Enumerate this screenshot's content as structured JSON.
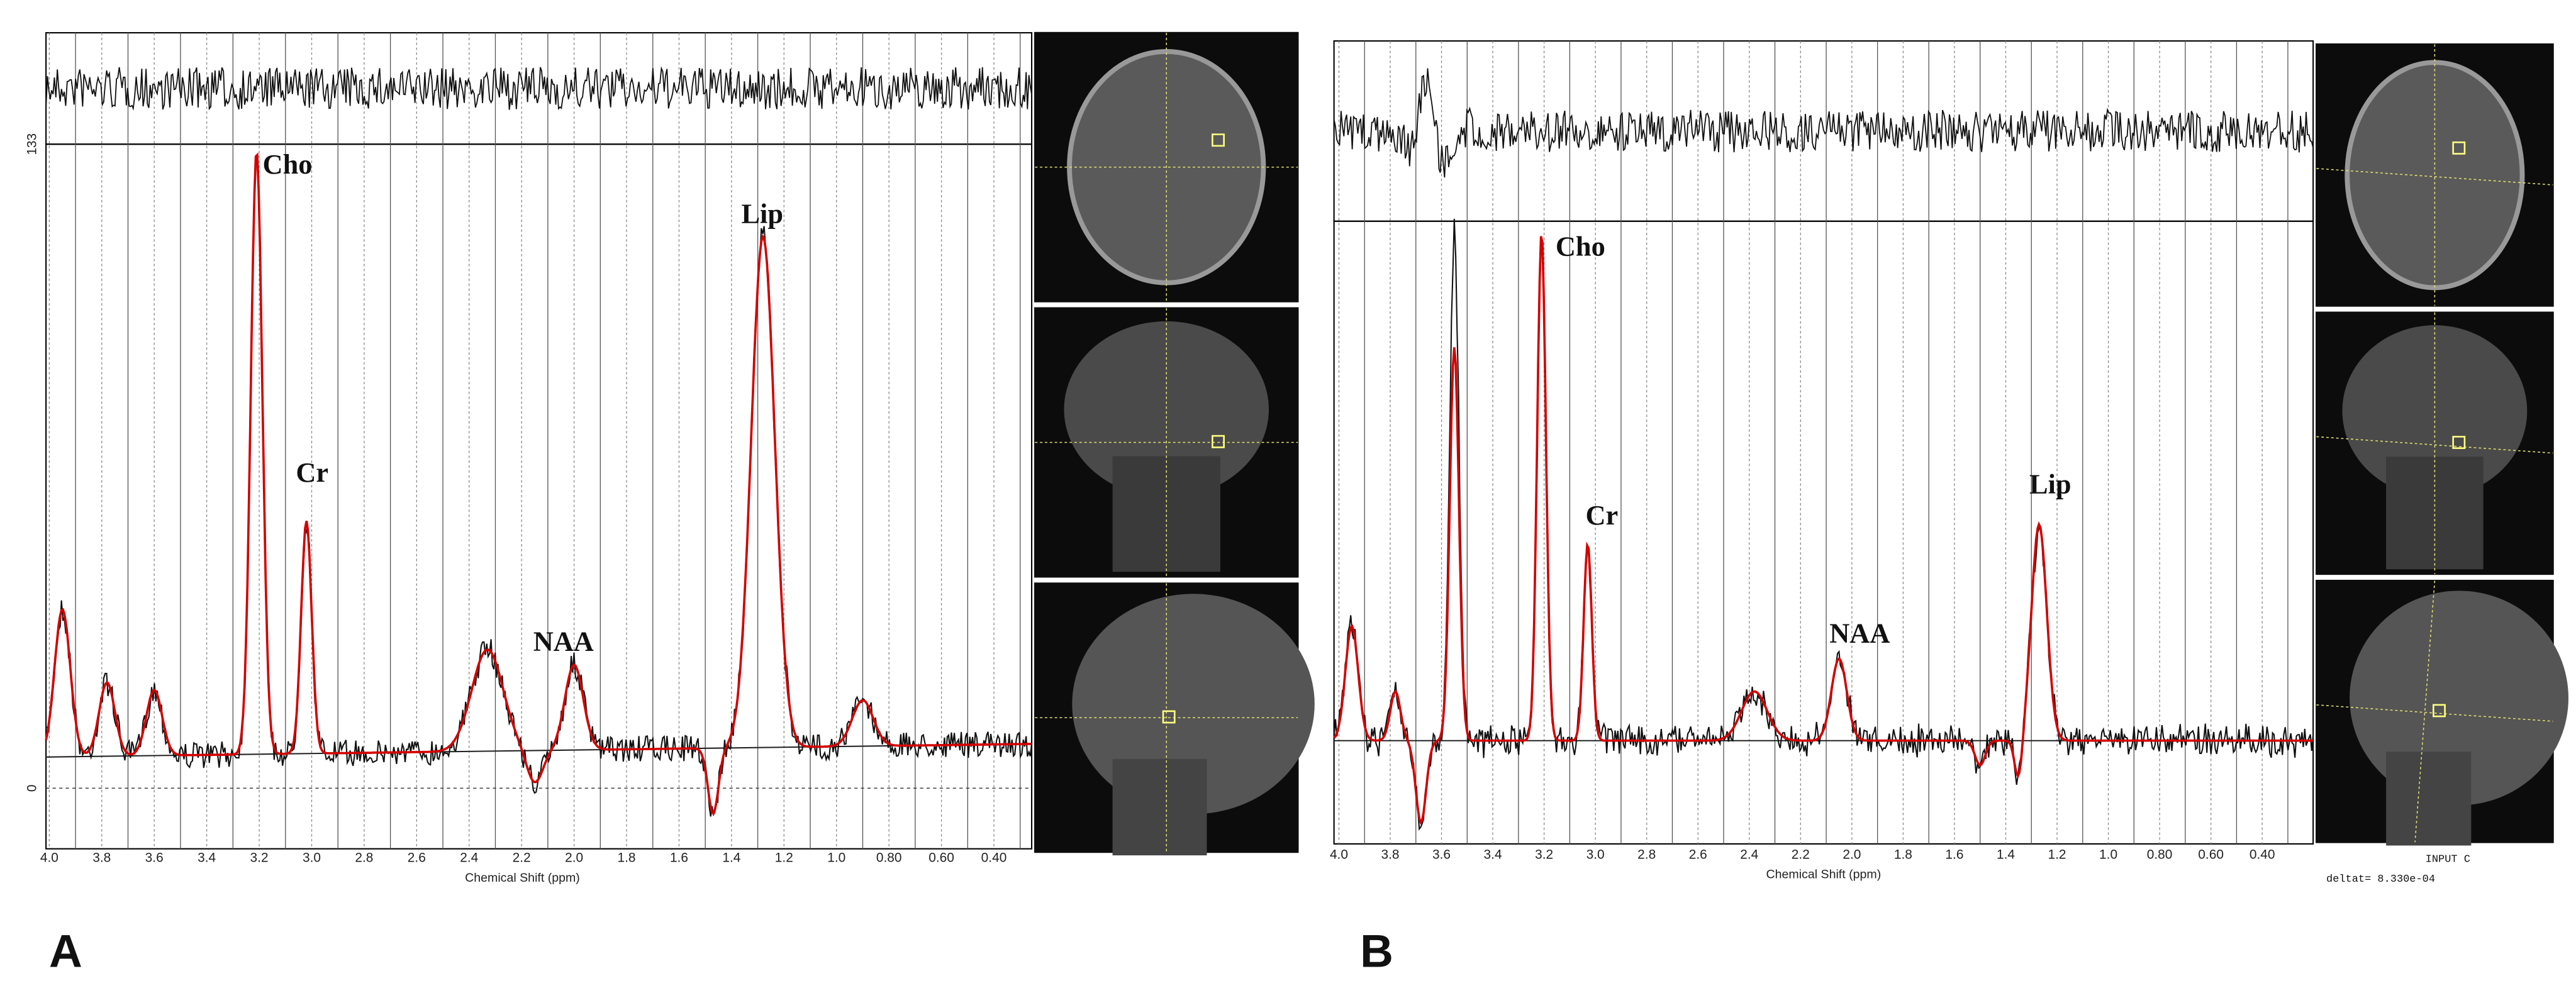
{
  "panels": [
    {
      "label": "A",
      "x_axis_title": "Chemical Shift (ppm)",
      "x_tick_labels": [
        "4.0",
        "3.8",
        "3.6",
        "3.4",
        "3.2",
        "3.0",
        "2.8",
        "2.6",
        "2.4",
        "2.2",
        "2.0",
        "1.8",
        "1.6",
        "1.4",
        "1.2",
        "1.0",
        "0.80",
        "0.60",
        "0.40"
      ],
      "peak_labels": [
        "Cho",
        "Cr",
        "NAA",
        "Lip"
      ],
      "y_axis_labels": [
        "133",
        "0"
      ]
    },
    {
      "label": "B",
      "x_axis_title": "Chemical Shift (ppm)",
      "x_tick_labels": [
        "4.0",
        "3.8",
        "3.6",
        "3.4",
        "3.2",
        "3.0",
        "2.8",
        "2.6",
        "2.4",
        "2.2",
        "2.0",
        "1.8",
        "1.6",
        "1.4",
        "1.2",
        "1.0",
        "0.80",
        "0.60",
        "0.40"
      ],
      "peak_labels": [
        "Cho",
        "Cr",
        "NAA",
        "Lip"
      ],
      "footer": [
        "INPUT C",
        "deltat= 8.330e-04"
      ]
    }
  ]
}
